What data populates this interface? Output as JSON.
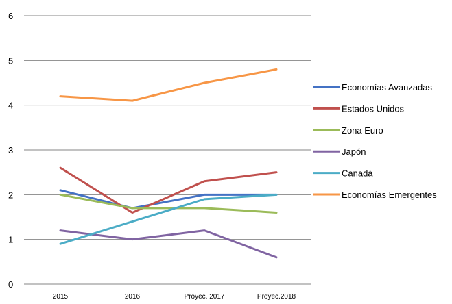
{
  "chart_data": {
    "type": "line",
    "title": "",
    "xlabel": "",
    "ylabel": "",
    "categories": [
      "2015",
      "2016",
      "Proyec. 2017",
      "Proyec.2018"
    ],
    "ylim": [
      0,
      6
    ],
    "yticks": [
      "0",
      "1",
      "2",
      "3",
      "4",
      "5",
      "6"
    ],
    "grid": true,
    "legend_position": "right",
    "series": [
      {
        "name": "Economías Avanzadas",
        "color": "#4472C4",
        "values": [
          2.1,
          1.7,
          2.0,
          2.0
        ]
      },
      {
        "name": "Estados Unidos",
        "color": "#C0504D",
        "values": [
          2.6,
          1.6,
          2.3,
          2.5
        ]
      },
      {
        "name": "Zona Euro",
        "color": "#9BBB59",
        "values": [
          2.0,
          1.7,
          1.7,
          1.6
        ]
      },
      {
        "name": "Japón",
        "color": "#8064A2",
        "values": [
          1.2,
          1.0,
          1.2,
          0.6
        ]
      },
      {
        "name": "Canadá",
        "color": "#4BACC6",
        "values": [
          0.9,
          1.4,
          1.9,
          2.0
        ]
      },
      {
        "name": "Economías Emergentes",
        "color": "#F79646",
        "values": [
          4.2,
          4.1,
          4.5,
          4.8
        ]
      }
    ]
  }
}
